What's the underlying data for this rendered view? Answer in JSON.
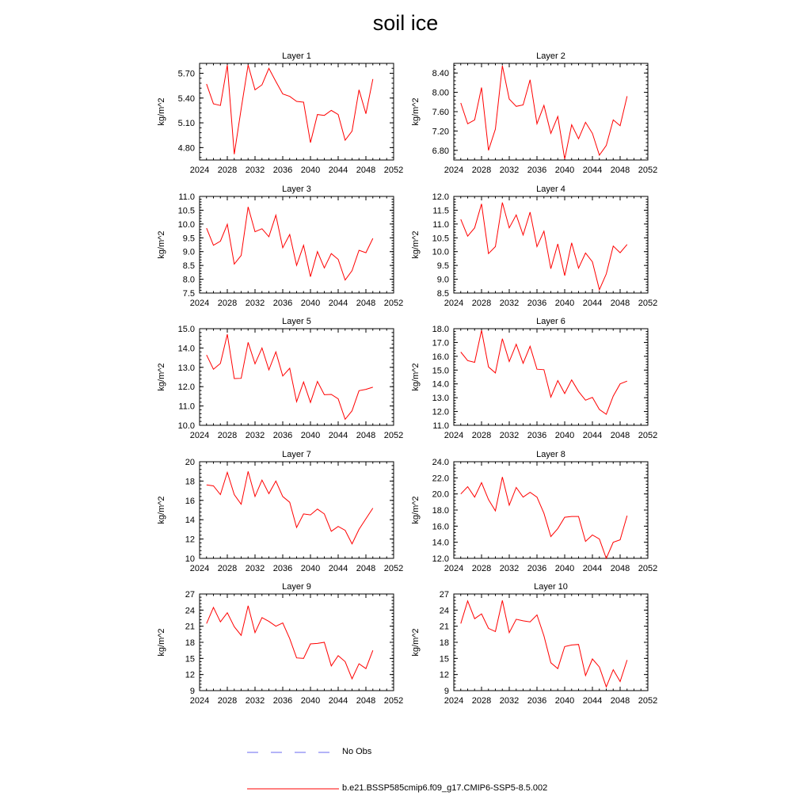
{
  "page": {
    "title": "soil ice"
  },
  "legend": {
    "items": [
      {
        "label": "No Obs",
        "color": "#6a6af0",
        "style": "dashed"
      },
      {
        "label": "b.e21.BSSP585cmip6.f09_g17.CMIP6-SSP5-8.5.002",
        "color": "#ff0000",
        "style": "solid"
      }
    ]
  },
  "chart_data": [
    {
      "type": "line",
      "title": "Layer 1",
      "ylabel": "kg/m^2",
      "xlim": [
        2024,
        2052
      ],
      "xticks": [
        "2024",
        "2028",
        "2032",
        "2036",
        "2040",
        "2044",
        "2048",
        "2052"
      ],
      "ylim": [
        4.65,
        5.82
      ],
      "yticks": [
        "4.80",
        "5.10",
        "5.40",
        "5.70"
      ],
      "series": [
        {
          "color": "#ff0000",
          "x": [
            2025,
            2026,
            2027,
            2028,
            2029,
            2030,
            2031,
            2032,
            2033,
            2034,
            2035,
            2036,
            2037,
            2038,
            2039,
            2040,
            2041,
            2042,
            2043,
            2044,
            2045,
            2046,
            2047,
            2048,
            2049
          ],
          "y": [
            5.57,
            5.33,
            5.31,
            5.8,
            4.72,
            5.27,
            5.8,
            5.5,
            5.56,
            5.76,
            5.6,
            5.45,
            5.42,
            5.36,
            5.35,
            4.86,
            5.2,
            5.19,
            5.25,
            5.2,
            4.89,
            5.0,
            5.5,
            5.21,
            5.63
          ]
        }
      ]
    },
    {
      "type": "line",
      "title": "Layer 2",
      "ylabel": "kg/m^2",
      "xlim": [
        2024,
        2052
      ],
      "xticks": [
        "2024",
        "2028",
        "2032",
        "2036",
        "2040",
        "2044",
        "2048",
        "2052"
      ],
      "ylim": [
        6.6,
        8.6
      ],
      "yticks": [
        "6.80",
        "7.20",
        "7.60",
        "8.00",
        "8.40"
      ],
      "series": [
        {
          "color": "#ff0000",
          "x": [
            2025,
            2026,
            2027,
            2028,
            2029,
            2030,
            2031,
            2032,
            2033,
            2034,
            2035,
            2036,
            2037,
            2038,
            2039,
            2040,
            2041,
            2042,
            2043,
            2044,
            2045,
            2046,
            2047,
            2048,
            2049
          ],
          "y": [
            7.78,
            7.35,
            7.43,
            8.1,
            6.8,
            7.24,
            8.55,
            7.86,
            7.71,
            7.74,
            8.26,
            7.35,
            7.73,
            7.15,
            7.5,
            6.62,
            7.33,
            7.04,
            7.38,
            7.15,
            6.7,
            6.9,
            7.43,
            7.31,
            7.92
          ]
        }
      ]
    },
    {
      "type": "line",
      "title": "Layer 3",
      "ylabel": "kg/m^2",
      "xlim": [
        2024,
        2052
      ],
      "xticks": [
        "2024",
        "2028",
        "2032",
        "2036",
        "2040",
        "2044",
        "2048",
        "2052"
      ],
      "ylim": [
        7.5,
        11.0
      ],
      "yticks": [
        "7.5",
        "8.0",
        "8.5",
        "9.0",
        "9.5",
        "10.0",
        "10.5",
        "11.0"
      ],
      "series": [
        {
          "color": "#ff0000",
          "x": [
            2025,
            2026,
            2027,
            2028,
            2029,
            2030,
            2031,
            2032,
            2033,
            2034,
            2035,
            2036,
            2037,
            2038,
            2039,
            2040,
            2041,
            2042,
            2043,
            2044,
            2045,
            2046,
            2047,
            2048,
            2049
          ],
          "y": [
            9.85,
            9.23,
            9.38,
            9.99,
            8.55,
            8.86,
            10.62,
            9.72,
            9.83,
            9.54,
            10.32,
            9.14,
            9.62,
            8.5,
            9.23,
            8.09,
            9.0,
            8.41,
            8.93,
            8.72,
            7.97,
            8.31,
            9.05,
            8.96,
            9.48
          ]
        }
      ]
    },
    {
      "type": "line",
      "title": "Layer 4",
      "ylabel": "kg/m^2",
      "xlim": [
        2024,
        2052
      ],
      "xticks": [
        "2024",
        "2028",
        "2032",
        "2036",
        "2040",
        "2044",
        "2048",
        "2052"
      ],
      "ylim": [
        8.5,
        12.0
      ],
      "yticks": [
        "8.5",
        "9.0",
        "9.5",
        "10.0",
        "10.5",
        "11.0",
        "11.5",
        "12.0"
      ],
      "series": [
        {
          "color": "#ff0000",
          "x": [
            2025,
            2026,
            2027,
            2028,
            2029,
            2030,
            2031,
            2032,
            2033,
            2034,
            2035,
            2036,
            2037,
            2038,
            2039,
            2040,
            2041,
            2042,
            2043,
            2044,
            2045,
            2046,
            2047,
            2048,
            2049
          ],
          "y": [
            11.17,
            10.56,
            10.86,
            11.73,
            9.93,
            10.18,
            11.78,
            10.86,
            11.33,
            10.6,
            11.43,
            10.18,
            10.74,
            9.38,
            10.28,
            9.13,
            10.32,
            9.4,
            9.95,
            9.63,
            8.62,
            9.19,
            10.2,
            9.96,
            10.26
          ]
        }
      ]
    },
    {
      "type": "line",
      "title": "Layer 5",
      "ylabel": "kg/m^2",
      "xlim": [
        2024,
        2052
      ],
      "xticks": [
        "2024",
        "2028",
        "2032",
        "2036",
        "2040",
        "2044",
        "2048",
        "2052"
      ],
      "ylim": [
        10.0,
        15.0
      ],
      "yticks": [
        "10.0",
        "11.0",
        "12.0",
        "13.0",
        "14.0",
        "15.0"
      ],
      "series": [
        {
          "color": "#ff0000",
          "x": [
            2025,
            2026,
            2027,
            2028,
            2029,
            2030,
            2031,
            2032,
            2033,
            2034,
            2035,
            2036,
            2037,
            2038,
            2039,
            2040,
            2041,
            2042,
            2043,
            2044,
            2045,
            2046,
            2047,
            2048,
            2049
          ],
          "y": [
            13.64,
            12.9,
            13.2,
            14.71,
            12.42,
            12.43,
            14.29,
            13.18,
            14.0,
            12.87,
            13.8,
            12.55,
            12.95,
            11.22,
            12.24,
            11.18,
            12.27,
            11.58,
            11.6,
            11.37,
            10.31,
            10.75,
            11.79,
            11.86,
            11.97
          ]
        }
      ]
    },
    {
      "type": "line",
      "title": "Layer 6",
      "ylabel": "kg/m^2",
      "xlim": [
        2024,
        2052
      ],
      "xticks": [
        "2024",
        "2028",
        "2032",
        "2036",
        "2040",
        "2044",
        "2048",
        "2052"
      ],
      "ylim": [
        11.0,
        18.0
      ],
      "yticks": [
        "11.0",
        "12.0",
        "13.0",
        "14.0",
        "15.0",
        "16.0",
        "17.0",
        "18.0"
      ],
      "series": [
        {
          "color": "#ff0000",
          "x": [
            2025,
            2026,
            2027,
            2028,
            2029,
            2030,
            2031,
            2032,
            2033,
            2034,
            2035,
            2036,
            2037,
            2038,
            2039,
            2040,
            2041,
            2042,
            2043,
            2044,
            2045,
            2046,
            2047,
            2048,
            2049
          ],
          "y": [
            16.31,
            15.69,
            15.56,
            17.88,
            15.23,
            14.79,
            17.27,
            15.62,
            16.87,
            15.49,
            16.72,
            15.06,
            15.03,
            13.04,
            14.24,
            13.3,
            14.29,
            13.45,
            12.82,
            13.02,
            12.15,
            11.8,
            13.12,
            14.0,
            14.2
          ]
        }
      ]
    },
    {
      "type": "line",
      "title": "Layer 7",
      "ylabel": "kg/m^2",
      "xlim": [
        2024,
        2052
      ],
      "xticks": [
        "2024",
        "2028",
        "2032",
        "2036",
        "2040",
        "2044",
        "2048",
        "2052"
      ],
      "ylim": [
        10,
        20
      ],
      "yticks": [
        "10",
        "12",
        "14",
        "16",
        "18",
        "20"
      ],
      "series": [
        {
          "color": "#ff0000",
          "x": [
            2025,
            2026,
            2027,
            2028,
            2029,
            2030,
            2031,
            2032,
            2033,
            2034,
            2035,
            2036,
            2037,
            2038,
            2039,
            2040,
            2041,
            2042,
            2043,
            2044,
            2045,
            2046,
            2047,
            2048,
            2049
          ],
          "y": [
            17.6,
            17.5,
            16.6,
            18.9,
            16.6,
            15.6,
            19.0,
            16.4,
            18.1,
            16.7,
            18.0,
            16.4,
            15.8,
            13.2,
            14.6,
            14.5,
            15.1,
            14.6,
            12.8,
            13.3,
            12.9,
            11.5,
            13.0,
            14.1,
            15.2
          ]
        }
      ]
    },
    {
      "type": "line",
      "title": "Layer 8",
      "ylabel": "kg/m^2",
      "xlim": [
        2024,
        2052
      ],
      "xticks": [
        "2024",
        "2028",
        "2032",
        "2036",
        "2040",
        "2044",
        "2048",
        "2052"
      ],
      "ylim": [
        12.0,
        24.0
      ],
      "yticks": [
        "12.0",
        "14.0",
        "16.0",
        "18.0",
        "20.0",
        "22.0",
        "24.0"
      ],
      "series": [
        {
          "color": "#ff0000",
          "x": [
            2025,
            2026,
            2027,
            2028,
            2029,
            2030,
            2031,
            2032,
            2033,
            2034,
            2035,
            2036,
            2037,
            2038,
            2039,
            2040,
            2041,
            2042,
            2043,
            2044,
            2045,
            2046,
            2047,
            2048,
            2049
          ],
          "y": [
            20.0,
            20.9,
            19.6,
            21.4,
            19.3,
            17.9,
            22.1,
            18.6,
            20.8,
            19.6,
            20.2,
            19.6,
            17.6,
            14.7,
            15.7,
            17.1,
            17.2,
            17.2,
            14.1,
            14.9,
            14.4,
            12.0,
            14.0,
            14.3,
            17.3
          ]
        }
      ]
    },
    {
      "type": "line",
      "title": "Layer 9",
      "ylabel": "kg/m^2",
      "xlim": [
        2024,
        2052
      ],
      "xticks": [
        "2024",
        "2028",
        "2032",
        "2036",
        "2040",
        "2044",
        "2048",
        "2052"
      ],
      "ylim": [
        9,
        27
      ],
      "yticks": [
        "9",
        "12",
        "15",
        "18",
        "21",
        "24",
        "27"
      ],
      "series": [
        {
          "color": "#ff0000",
          "x": [
            2025,
            2026,
            2027,
            2028,
            2029,
            2030,
            2031,
            2032,
            2033,
            2034,
            2035,
            2036,
            2037,
            2038,
            2039,
            2040,
            2041,
            2042,
            2043,
            2044,
            2045,
            2046,
            2047,
            2048,
            2049
          ],
          "y": [
            21.5,
            24.5,
            21.8,
            23.5,
            20.9,
            19.3,
            24.8,
            19.8,
            22.6,
            21.9,
            21.0,
            21.6,
            18.7,
            15.1,
            15.0,
            17.7,
            17.8,
            18.0,
            13.6,
            15.5,
            14.4,
            11.2,
            14.0,
            13.1,
            16.5
          ]
        }
      ]
    },
    {
      "type": "line",
      "title": "Layer 10",
      "ylabel": "kg/m^2",
      "xlim": [
        2024,
        2052
      ],
      "xticks": [
        "2024",
        "2028",
        "2032",
        "2036",
        "2040",
        "2044",
        "2048",
        "2052"
      ],
      "ylim": [
        9,
        27
      ],
      "yticks": [
        "9",
        "12",
        "15",
        "18",
        "21",
        "24",
        "27"
      ],
      "series": [
        {
          "color": "#ff0000",
          "x": [
            2025,
            2026,
            2027,
            2028,
            2029,
            2030,
            2031,
            2032,
            2033,
            2034,
            2035,
            2036,
            2037,
            2038,
            2039,
            2040,
            2041,
            2042,
            2043,
            2044,
            2045,
            2046,
            2047,
            2048,
            2049
          ],
          "y": [
            21.5,
            25.7,
            22.4,
            23.3,
            20.6,
            20.0,
            25.8,
            19.8,
            22.3,
            22.0,
            21.8,
            23.1,
            19.2,
            14.2,
            13.1,
            17.2,
            17.5,
            17.6,
            11.8,
            14.9,
            13.4,
            9.7,
            12.9,
            10.7,
            14.7
          ]
        }
      ]
    }
  ]
}
